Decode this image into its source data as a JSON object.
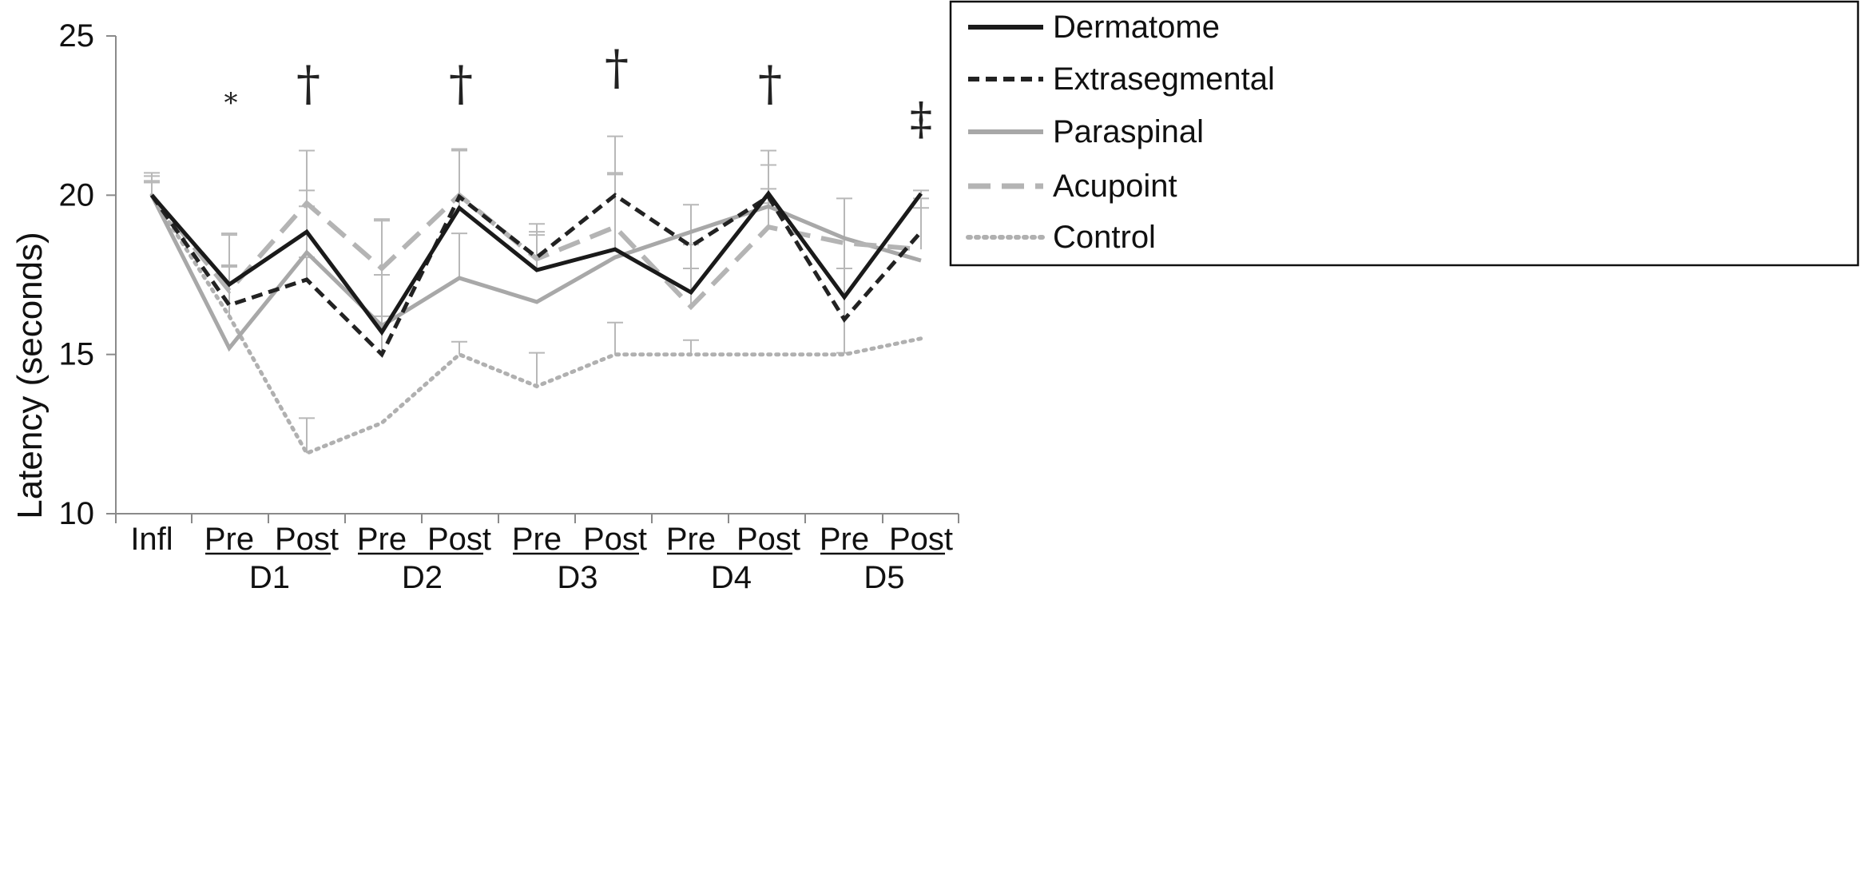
{
  "chart_data": {
    "type": "line",
    "title": "",
    "ylabel": "Latency (seconds)",
    "xlabel": "",
    "ylim": [
      10,
      25
    ],
    "yticks": [
      10,
      15,
      20,
      25
    ],
    "categories": [
      "Infl",
      "Pre",
      "Post",
      "Pre",
      "Post",
      "Pre",
      "Post",
      "Pre",
      "Post",
      "Pre",
      "Post"
    ],
    "groups": [
      {
        "label": "D1",
        "from": 1,
        "to": 2
      },
      {
        "label": "D2",
        "from": 3,
        "to": 4
      },
      {
        "label": "D3",
        "from": 5,
        "to": 6
      },
      {
        "label": "D4",
        "from": 7,
        "to": 8
      },
      {
        "label": "D5",
        "from": 9,
        "to": 10
      }
    ],
    "series": [
      {
        "name": "Dermatome",
        "color": "#1a1a1a",
        "dash": "solid",
        "values": [
          20,
          17.2,
          18.85,
          15.7,
          19.6,
          17.65,
          18.3,
          16.95,
          20.05,
          16.8,
          20.05
        ],
        "err": [
          0.7,
          1.6,
          1.3,
          1.8,
          1.8,
          1.1,
          2.35,
          1.5,
          1.35,
          0,
          0.1
        ]
      },
      {
        "name": "Extrasegmental",
        "color": "#222222",
        "dash": "dashed",
        "values": [
          20,
          16.55,
          17.35,
          15.0,
          19.95,
          18.05,
          20.0,
          18.4,
          19.95,
          16.1,
          18.85
        ],
        "err": [
          0.4,
          1.2,
          0.7,
          1.2,
          1.5,
          0.8,
          1.85,
          1.3,
          1.0,
          1.6,
          1.05
        ]
      },
      {
        "name": "Paraspinal",
        "color": "#a8a8a8",
        "dash": "solid",
        "values": [
          20,
          15.2,
          18.2,
          15.9,
          17.4,
          16.65,
          18.05,
          18.85,
          19.65,
          18.65,
          17.95
        ],
        "err": [
          0.4,
          0,
          1.45,
          3.35,
          1.4,
          0,
          0,
          0,
          0.1,
          0,
          0
        ],
        "err_down": [
          0,
          0,
          0,
          0,
          0,
          0,
          0,
          0,
          0,
          3.6,
          0
        ]
      },
      {
        "name": "Acupoint",
        "color": "#b4b4b4",
        "dash": "longdash",
        "values": [
          20,
          17.0,
          19.75,
          17.7,
          20.0,
          18.0,
          19.0,
          16.5,
          19.0,
          18.5,
          18.3
        ],
        "err": [
          0.6,
          1.75,
          1.65,
          1.5,
          1.4,
          1.1,
          1.7,
          1.2,
          1.2,
          1.4,
          1.3
        ]
      },
      {
        "name": "Control",
        "color": "#b0b0b0",
        "dash": "dotted",
        "values": [
          20,
          16.2,
          11.9,
          12.85,
          15.0,
          14.0,
          15.0,
          15.0,
          15.0,
          15.0,
          15.5
        ],
        "err": [
          0.45,
          1.6,
          1.1,
          0,
          0.4,
          1.05,
          1.0,
          0.45,
          0,
          0,
          0
        ]
      }
    ],
    "annotations": [
      {
        "text": "*",
        "category": 1
      },
      {
        "text": "†",
        "category": 2
      },
      {
        "text": "†",
        "category": 4
      },
      {
        "text": "†",
        "category": 6
      },
      {
        "text": "†",
        "category": 8
      },
      {
        "text": "‡",
        "category": 10
      }
    ],
    "legend_position": "top-right"
  }
}
